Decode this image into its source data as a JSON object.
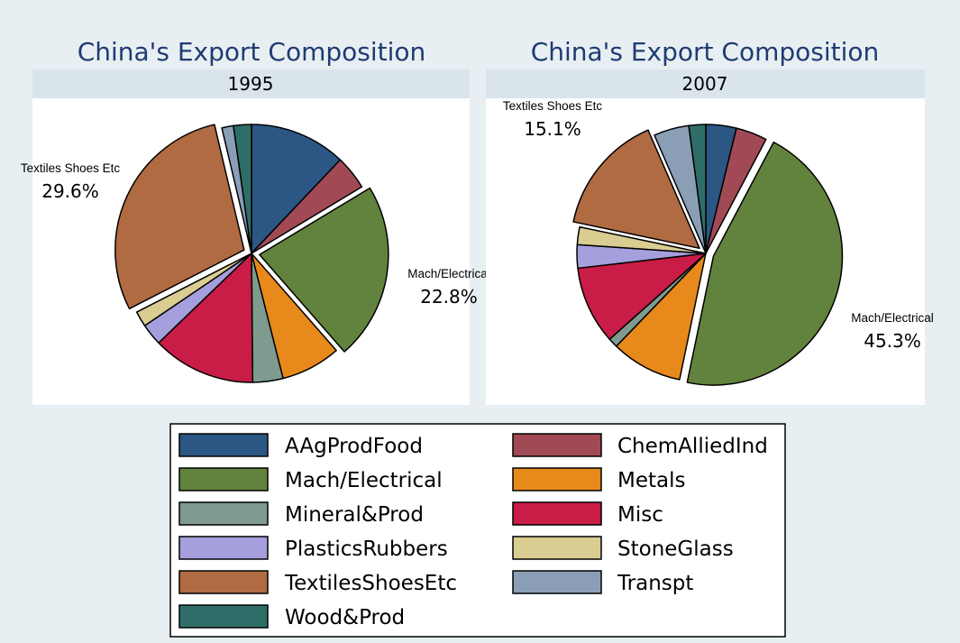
{
  "colors": {
    "background": "#e8eff2",
    "plot_background": "#ffffff",
    "subtitle_band": "#d9e5eb",
    "title": "#1f3b73"
  },
  "chart_data": [
    {
      "type": "pie",
      "title": "China's Export Composition",
      "subtitle": "1995",
      "categories": [
        "AAgProdFood",
        "ChemAlliedInd",
        "Mach/Electrical",
        "Metals",
        "Mineral&Prod",
        "Misc",
        "PlasticsRubbers",
        "StoneGlass",
        "TextilesShoesEtc",
        "Transpt",
        "Wood&Prod"
      ],
      "values": [
        12.4,
        4.4,
        22.8,
        7.7,
        3.9,
        13.3,
        2.8,
        2.0,
        29.6,
        1.5,
        2.3
      ],
      "labels": [
        {
          "category": "TextilesShoesEtc",
          "name": "Textiles Shoes Etc",
          "value": "29.6%"
        },
        {
          "category": "Mach/Electrical",
          "name": "Mach/Electrical",
          "value": "22.8%"
        }
      ]
    },
    {
      "type": "pie",
      "title": "China's Export Composition",
      "subtitle": "2007",
      "categories": [
        "AAgProdFood",
        "ChemAlliedInd",
        "Mach/Electrical",
        "Metals",
        "Mineral&Prod",
        "Misc",
        "PlasticsRubbers",
        "StoneGlass",
        "TextilesShoesEtc",
        "Transpt",
        "Wood&Prod"
      ],
      "values": [
        3.8,
        3.9,
        45.3,
        8.9,
        1.2,
        9.7,
        2.9,
        2.2,
        15.1,
        4.4,
        2.1
      ],
      "labels": [
        {
          "category": "TextilesShoesEtc",
          "name": "Textiles Shoes Etc",
          "value": "15.1%"
        },
        {
          "category": "Mach/Electrical",
          "name": "Mach/Electrical",
          "value": "45.3%"
        }
      ]
    }
  ],
  "legend": [
    {
      "label": "AAgProdFood",
      "color": "#2c5784"
    },
    {
      "label": "ChemAlliedInd",
      "color": "#a14a55"
    },
    {
      "label": "Mach/Electrical",
      "color": "#61833e"
    },
    {
      "label": "Metals",
      "color": "#e8891c"
    },
    {
      "label": "Mineral&Prod",
      "color": "#7f9b8f"
    },
    {
      "label": "Misc",
      "color": "#c91c46"
    },
    {
      "label": "PlasticsRubbers",
      "color": "#a69fdd"
    },
    {
      "label": "StoneGlass",
      "color": "#d9cd92"
    },
    {
      "label": "TextilesShoesEtc",
      "color": "#b06b42"
    },
    {
      "label": "Transpt",
      "color": "#8a9fb6"
    },
    {
      "label": "Wood&Prod",
      "color": "#2f6e68"
    }
  ]
}
